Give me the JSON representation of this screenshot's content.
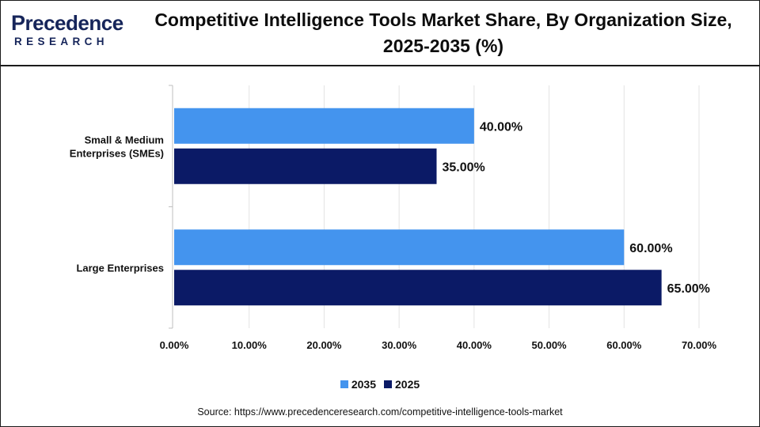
{
  "brand": {
    "logo_initial": "P",
    "logo_word": "recedence",
    "logo_sub": "RESEARCH"
  },
  "chart_data": {
    "type": "bar",
    "orientation": "horizontal",
    "title": "Competitive Intelligence Tools Market Share, By Organization Size, 2025-2035 (%)",
    "categories": [
      "Small & Medium Enterprises (SMEs)",
      "Large Enterprises"
    ],
    "series": [
      {
        "name": "2035",
        "values": [
          40,
          60
        ],
        "labels": [
          "40.00%",
          "60.00%"
        ],
        "color": "#4494ee"
      },
      {
        "name": "2025",
        "values": [
          35,
          65
        ],
        "labels": [
          "35.00%",
          "65.00%"
        ],
        "color": "#0b1a66"
      }
    ],
    "xlim": [
      0,
      70
    ],
    "x_ticks": [
      0,
      10,
      20,
      30,
      40,
      50,
      60,
      70
    ],
    "x_tick_labels": [
      "0.00%",
      "10.00%",
      "20.00%",
      "30.00%",
      "40.00%",
      "50.00%",
      "60.00%",
      "70.00%"
    ],
    "grid": true,
    "legend_position": "bottom-center"
  },
  "source": "Source: https://www.precedenceresearch.com/competitive-intelligence-tools-market"
}
